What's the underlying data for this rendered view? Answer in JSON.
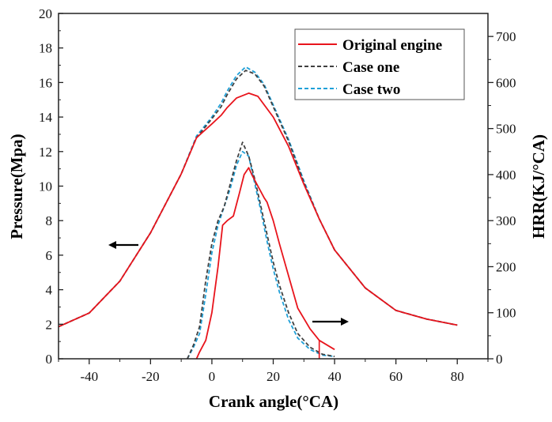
{
  "chart_data": {
    "type": "line",
    "title": "",
    "xlabel": "Crank angle(°CA)",
    "ylabel": "Pressure(Mpa)",
    "y2label": "HRR(KJ/°CA)",
    "xlim": [
      -50,
      90
    ],
    "ylim": [
      0,
      20
    ],
    "y2lim": [
      0,
      750
    ],
    "xticks": [
      -40,
      -20,
      0,
      20,
      40,
      60,
      80
    ],
    "yticks": [
      0,
      2,
      4,
      6,
      8,
      10,
      12,
      14,
      16,
      18,
      20
    ],
    "y2ticks": [
      0,
      100,
      200,
      300,
      400,
      500,
      600,
      700
    ],
    "grid": false,
    "legend_position": "top-right",
    "annotations": [
      {
        "type": "arrow",
        "direction": "left",
        "meaning": "pressure curves use left axis"
      },
      {
        "type": "arrow",
        "direction": "right",
        "meaning": "HRR curves use right axis"
      }
    ],
    "series": [
      {
        "name": "Original engine",
        "color": "#e8141c",
        "dash": "solid",
        "legend": true,
        "pressure": {
          "x": [
            -50,
            -40,
            -30,
            -20,
            -10,
            -5,
            0,
            3,
            5,
            8,
            12,
            15,
            20,
            25,
            30,
            35,
            40,
            50,
            60,
            70,
            80
          ],
          "y": [
            1.86,
            2.65,
            4.5,
            7.3,
            10.7,
            12.8,
            13.6,
            14.1,
            14.55,
            15.1,
            15.38,
            15.2,
            14.0,
            12.3,
            10.1,
            8.1,
            6.3,
            4.1,
            2.8,
            2.3,
            1.95
          ]
        },
        "hrr": {
          "x": [
            -5,
            -4,
            -2,
            0,
            2,
            3.5,
            5,
            7,
            9,
            10.5,
            12,
            13,
            15,
            17,
            18,
            20,
            22,
            25,
            28,
            32,
            35,
            40
          ],
          "y": [
            0,
            15,
            40,
            100,
            200,
            290,
            300,
            310,
            360,
            400,
            415,
            400,
            375,
            350,
            340,
            300,
            250,
            180,
            110,
            65,
            40,
            20
          ]
        }
      },
      {
        "name": "Case one",
        "color": "#404040",
        "dash": "dashed",
        "legend": true,
        "pressure": {
          "x": [
            -50,
            -40,
            -30,
            -20,
            -10,
            -5,
            0,
            3,
            5,
            8,
            11,
            14,
            17,
            20,
            25,
            30,
            35,
            40,
            50,
            60,
            70,
            80
          ],
          "y": [
            1.86,
            2.65,
            4.5,
            7.3,
            10.7,
            12.8,
            13.9,
            14.6,
            15.3,
            16.2,
            16.7,
            16.5,
            15.8,
            14.6,
            12.6,
            10.2,
            8.1,
            6.3,
            4.1,
            2.8,
            2.3,
            1.95
          ]
        },
        "hrr": {
          "x": [
            -8,
            -6,
            -4,
            -2,
            0,
            2,
            4,
            6,
            8,
            10,
            12,
            14,
            16,
            18,
            20,
            22,
            25,
            28,
            32,
            36,
            40
          ],
          "y": [
            0,
            30,
            70,
            170,
            250,
            300,
            330,
            380,
            430,
            470,
            440,
            390,
            330,
            270,
            210,
            160,
            100,
            55,
            25,
            10,
            5
          ]
        }
      },
      {
        "name": "Case two",
        "color": "#1fa0d8",
        "dash": "dashed",
        "legend": true,
        "pressure": {
          "x": [
            -50,
            -40,
            -30,
            -20,
            -10,
            -5,
            0,
            3,
            5,
            8,
            11,
            14,
            17,
            20,
            25,
            30,
            35,
            40,
            50,
            60,
            70,
            80
          ],
          "y": [
            1.86,
            2.65,
            4.5,
            7.3,
            10.7,
            12.9,
            14.0,
            14.8,
            15.5,
            16.4,
            16.9,
            16.6,
            15.9,
            14.7,
            12.7,
            10.3,
            8.1,
            6.3,
            4.1,
            2.8,
            2.3,
            1.95
          ]
        },
        "hrr": {
          "x": [
            -8,
            -6,
            -4,
            -2,
            0,
            2,
            4,
            6,
            8,
            10,
            12,
            14,
            16,
            18,
            20,
            22,
            25,
            28,
            32,
            36,
            40
          ],
          "y": [
            0,
            25,
            55,
            140,
            230,
            290,
            330,
            370,
            420,
            450,
            440,
            380,
            320,
            255,
            195,
            145,
            85,
            45,
            20,
            8,
            5
          ]
        }
      }
    ]
  }
}
